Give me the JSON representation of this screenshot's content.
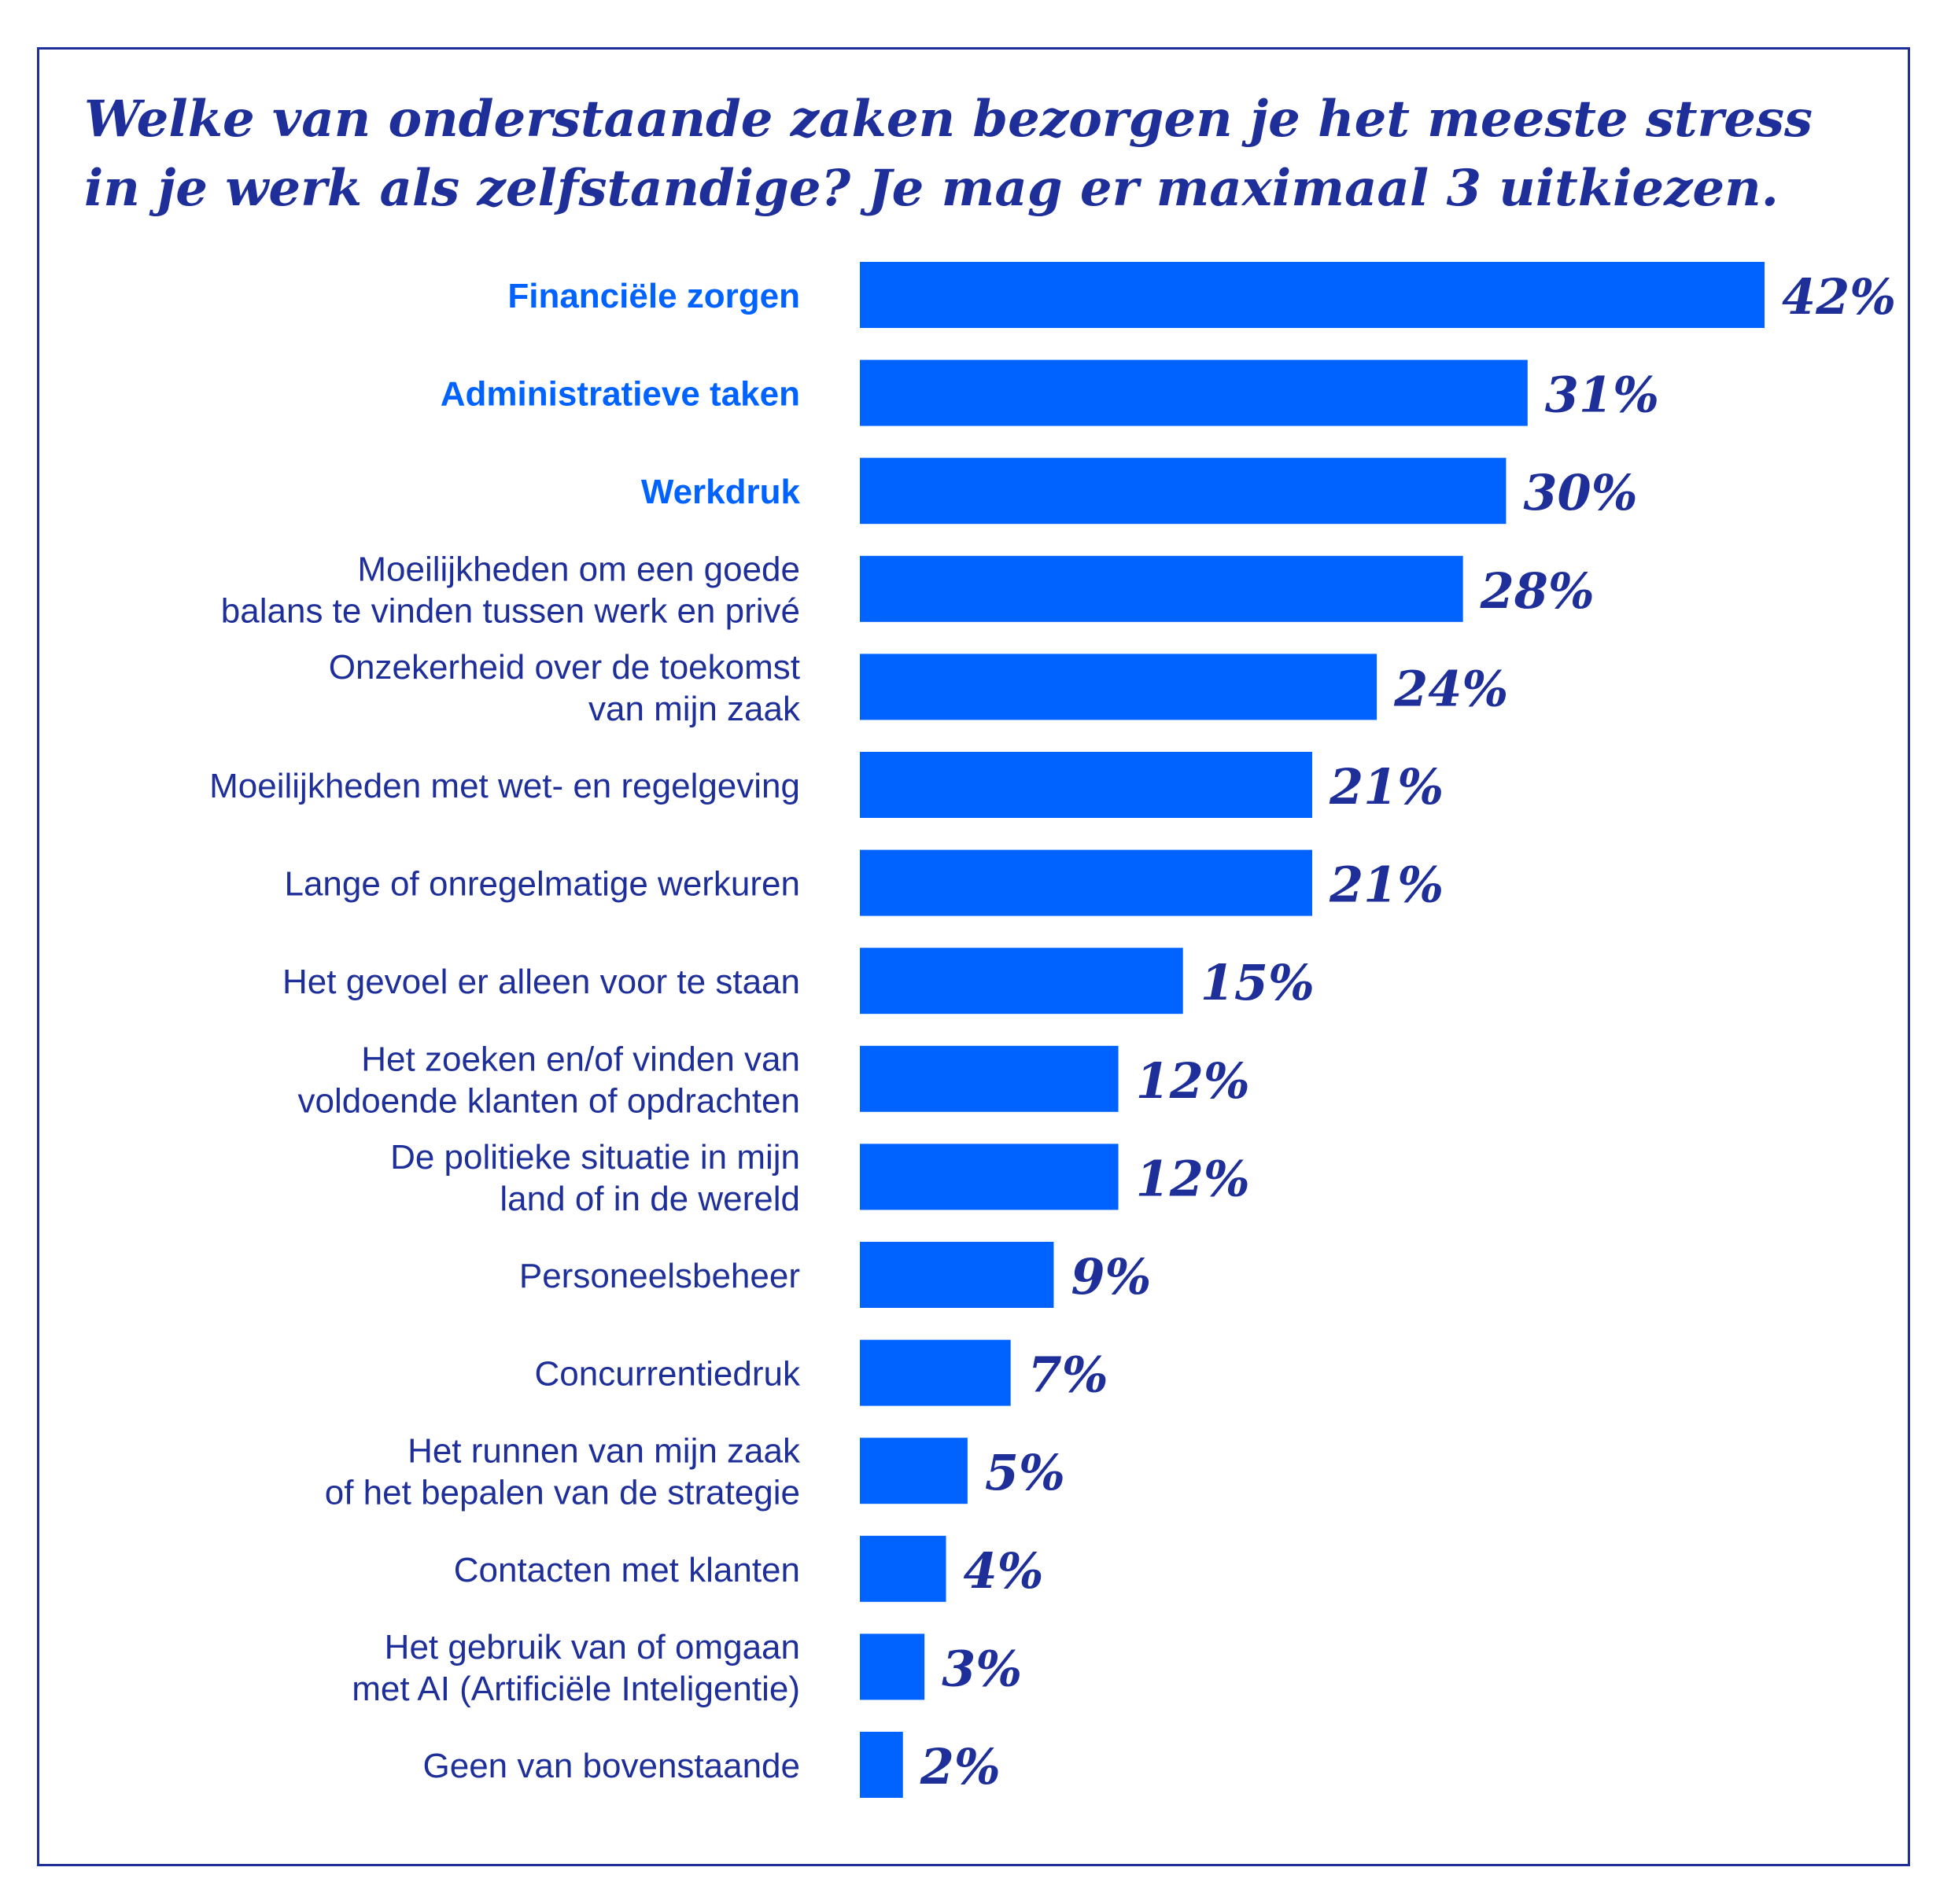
{
  "title_lines": [
    "Welke van onderstaande zaken bezorgen je het meeste stress",
    "in je werk als zelfstandige? Je mag er maximaal 3 uitkiezen."
  ],
  "colors": {
    "bar": "#0063ff",
    "value": "#1e2f9a",
    "label": "#1e2f9a",
    "highlight_label": "#0063ff",
    "frame": "#1e2f9a"
  },
  "chart_data": {
    "type": "bar",
    "orientation": "horizontal",
    "xlim": [
      0,
      42
    ],
    "highlighted_top": 3,
    "categories": [
      [
        "Financiële zorgen"
      ],
      [
        "Administratieve taken"
      ],
      [
        "Werkdruk"
      ],
      [
        "Moeilijkheden om een goede",
        "balans te vinden tussen werk en privé"
      ],
      [
        "Onzekerheid over de toekomst",
        "van mijn zaak"
      ],
      [
        "Moeilijkheden met wet- en regelgeving"
      ],
      [
        "Lange of onregelmatige werkuren"
      ],
      [
        "Het gevoel er alleen voor te staan"
      ],
      [
        "Het zoeken en/of vinden van",
        "voldoende klanten of opdrachten"
      ],
      [
        "De politieke situatie in mijn",
        "land of in de wereld"
      ],
      [
        "Personeelsbeheer"
      ],
      [
        "Concurrentiedruk"
      ],
      [
        "Het runnen van mijn zaak",
        "of het bepalen van de strategie"
      ],
      [
        "Contacten met klanten"
      ],
      [
        "Het gebruik van of omgaan",
        "met AI (Artificiële Inteligentie)"
      ],
      [
        "Geen van bovenstaande"
      ]
    ],
    "values": [
      42,
      31,
      30,
      28,
      24,
      21,
      21,
      15,
      12,
      12,
      9,
      7,
      5,
      4,
      3,
      2
    ],
    "value_labels": [
      "42%",
      "31%",
      "30%",
      "28%",
      "24%",
      "21%",
      "21%",
      "15%",
      "12%",
      "12%",
      "9%",
      "7%",
      "5%",
      "4%",
      "3%",
      "2%"
    ]
  }
}
